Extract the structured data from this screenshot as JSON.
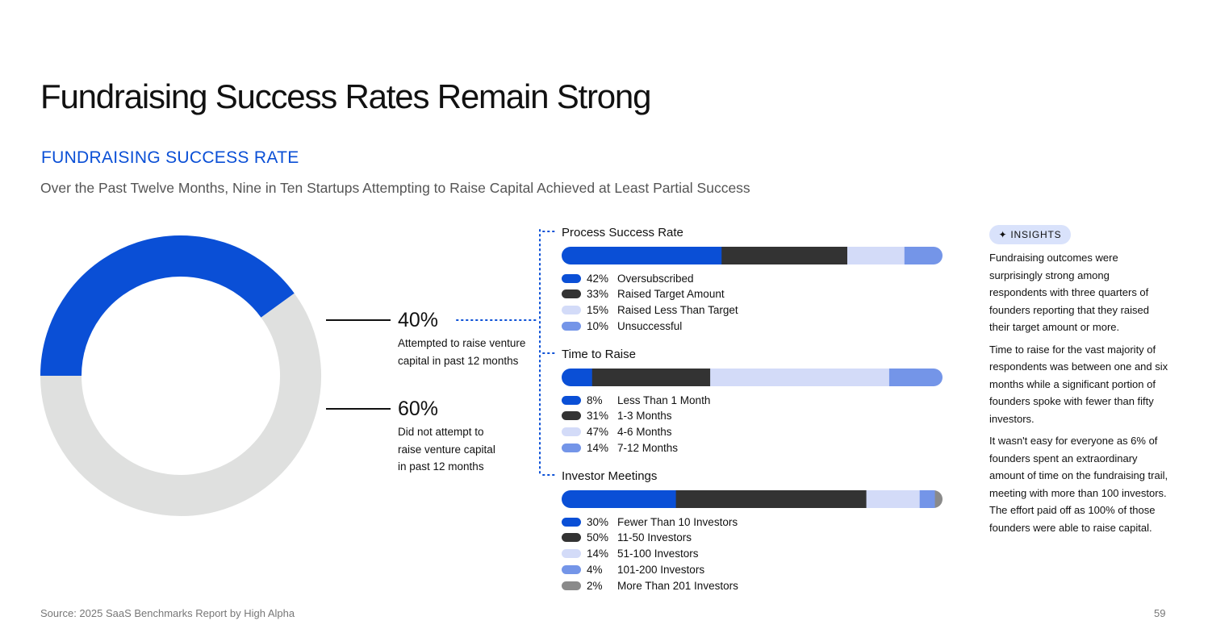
{
  "page": {
    "title": "Fundraising Success Rates Remain Strong",
    "section_label": "FUNDRAISING SUCCESS RATE",
    "subtitle": "Over the Past Twelve Months, Nine in Ten Startups Attempting to Raise Capital Achieved at Least Partial Success",
    "source": "Source: 2025 SaaS Benchmarks Report by High Alpha",
    "page_number": "59"
  },
  "colors": {
    "blue": "#0a4fd6",
    "dark": "#333333",
    "light": "#d3dbf8",
    "mid": "#7495e8",
    "grey": "#8a8a8a",
    "donut_rest": "#dfe0df"
  },
  "donut": {
    "attempted": {
      "pct": "40%",
      "bold": "Attempted",
      "rest": " to raise venture capital in past 12 months"
    },
    "not_attempted": {
      "pct": "60%",
      "bold": "Did not attempt",
      "rest": " to raise venture capital in past 12 months"
    }
  },
  "insights": {
    "badge": "INSIGHTS",
    "paragraphs": [
      "Fundraising outcomes were surprisingly strong among respondents with three quarters of founders reporting that they raised their target amount or more.",
      "Time to raise for the vast majority of respondents was between one and six months while a significant portion of founders spoke with fewer than fifty investors.",
      "It wasn't easy for everyone as 6% of founders spent an extraordinary amount of time on the fundraising trail, meeting with more than 100 investors. The effort paid off as 100% of those founders were able to raise capital."
    ]
  },
  "chart_data": [
    {
      "type": "pie",
      "title": "",
      "categories": [
        "Attempted to raise venture capital in past 12 months",
        "Did not attempt to raise venture capital in past 12 months"
      ],
      "values": [
        40,
        60
      ],
      "colors": [
        "#0a4fd6",
        "#dfe0df"
      ]
    },
    {
      "type": "bar",
      "orientation": "horizontal-stacked",
      "title": "Process Success Rate",
      "categories": [
        "Oversubscribed",
        "Raised Target Amount",
        "Raised Less Than Target",
        "Unsuccessful"
      ],
      "values": [
        42,
        33,
        15,
        10
      ],
      "labels": [
        "42%",
        "33%",
        "15%",
        "10%"
      ],
      "colors": [
        "#0a4fd6",
        "#333333",
        "#d3dbf8",
        "#7495e8"
      ]
    },
    {
      "type": "bar",
      "orientation": "horizontal-stacked",
      "title": "Time to Raise",
      "categories": [
        "Less Than 1 Month",
        "1-3 Months",
        "4-6 Months",
        "7-12 Months"
      ],
      "values": [
        8,
        31,
        47,
        14
      ],
      "labels": [
        "8%",
        "31%",
        "47%",
        "14%"
      ],
      "colors": [
        "#0a4fd6",
        "#333333",
        "#d3dbf8",
        "#7495e8"
      ]
    },
    {
      "type": "bar",
      "orientation": "horizontal-stacked",
      "title": "Investor Meetings",
      "categories": [
        "Fewer Than 10 Investors",
        "11-50 Investors",
        "51-100 Investors",
        "101-200 Investors",
        "More Than 201 Investors"
      ],
      "values": [
        30,
        50,
        14,
        4,
        2
      ],
      "labels": [
        "30%",
        "50%",
        "14%",
        "4%",
        "2%"
      ],
      "colors": [
        "#0a4fd6",
        "#333333",
        "#d3dbf8",
        "#7495e8",
        "#8a8a8a"
      ]
    }
  ]
}
